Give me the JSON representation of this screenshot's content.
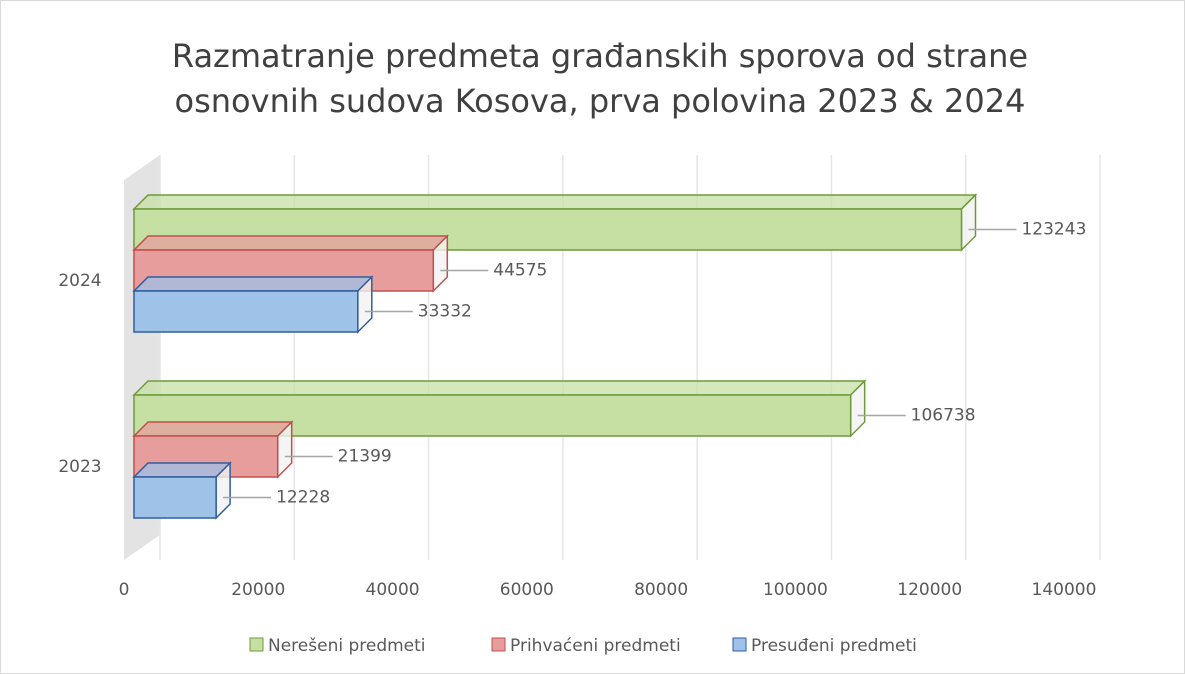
{
  "chart_data": {
    "type": "bar3d_horizontal",
    "title": [
      "Razmatranje predmeta građanskih sporova od strane",
      "osnovnih sudova Kosova, prva polovina 2023 & 2024"
    ],
    "categories": [
      "2023",
      "2024"
    ],
    "series": [
      {
        "name": "Nerešeni predmeti",
        "color": "#c6e0a4",
        "stroke": "#6f9a3c",
        "values": [
          106738,
          123243
        ]
      },
      {
        "name": "Prihvaćeni predmeti",
        "color": "#e69d9c",
        "stroke": "#c0504d",
        "values": [
          21399,
          44575
        ]
      },
      {
        "name": "Presuđeni predmeti",
        "color": "#9fc2e9",
        "stroke": "#2f5f9e",
        "values": [
          12228,
          33332
        ]
      }
    ],
    "xlim": [
      0,
      140000
    ],
    "xticks": [
      0,
      20000,
      40000,
      60000,
      80000,
      100000,
      120000,
      140000
    ],
    "grid": true,
    "legend": "bottom"
  }
}
